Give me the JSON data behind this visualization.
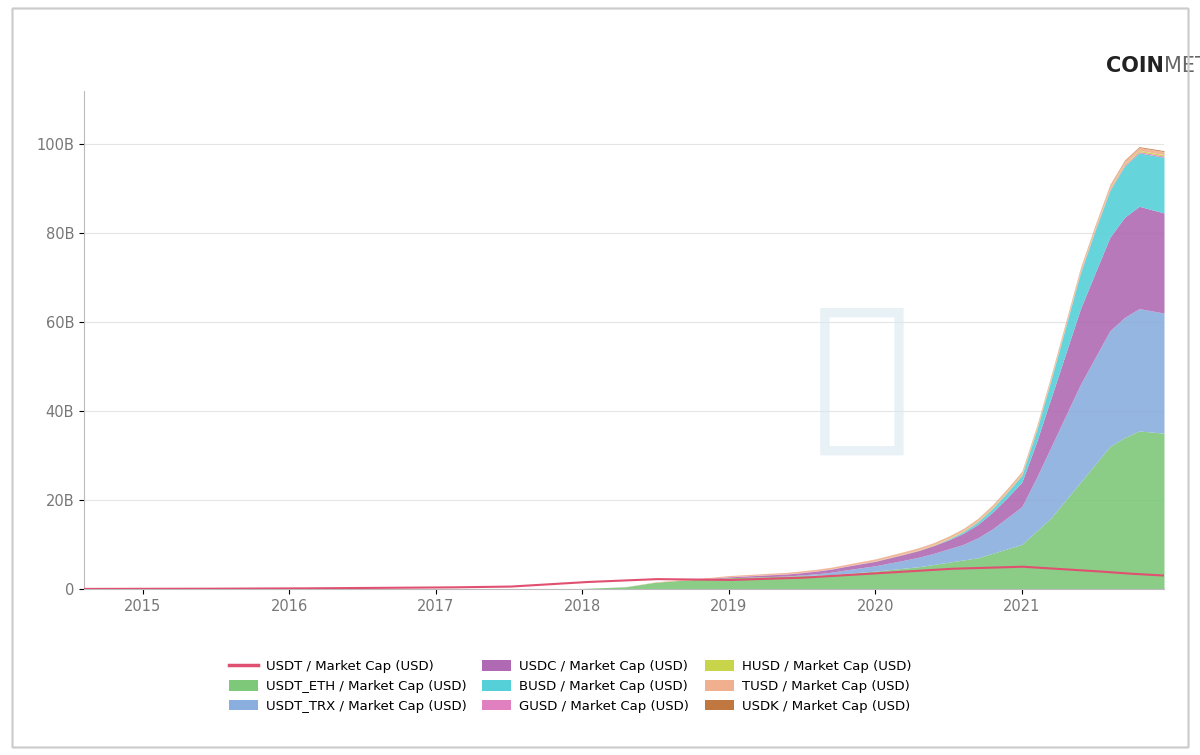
{
  "background_color": "#ffffff",
  "plot_bg_color": "#ffffff",
  "border_color": "#bbbbbb",
  "grid_color": "#e5e5e5",
  "yticks": [
    0,
    20,
    40,
    60,
    80,
    100
  ],
  "ytick_labels": [
    "0",
    "20B",
    "40B",
    "60B",
    "80B",
    "100B"
  ],
  "xlim_start": 2014.6,
  "xlim_end": 2021.97,
  "ylim_max": 112,
  "series": {
    "USDT": {
      "label": "USDT / Market Cap (USD)",
      "color": "#e05070"
    },
    "USDT_ETH": {
      "label": "USDT_ETH / Market Cap (USD)",
      "color": "#7ec87a"
    },
    "USDT_TRX": {
      "label": "USDT_TRX / Market Cap (USD)",
      "color": "#8aaedd"
    },
    "USDC": {
      "label": "USDC / Market Cap (USD)",
      "color": "#b06ab3"
    },
    "BUSD": {
      "label": "BUSD / Market Cap (USD)",
      "color": "#55d0d8"
    },
    "GUSD": {
      "label": "GUSD / Market Cap (USD)",
      "color": "#e080c0"
    },
    "HUSD": {
      "label": "HUSD / Market Cap (USD)",
      "color": "#c8d44a"
    },
    "TUSD": {
      "label": "TUSD / Market Cap (USD)",
      "color": "#f0b090"
    },
    "USDK": {
      "label": "USDK / Market Cap (USD)",
      "color": "#c07840"
    }
  }
}
